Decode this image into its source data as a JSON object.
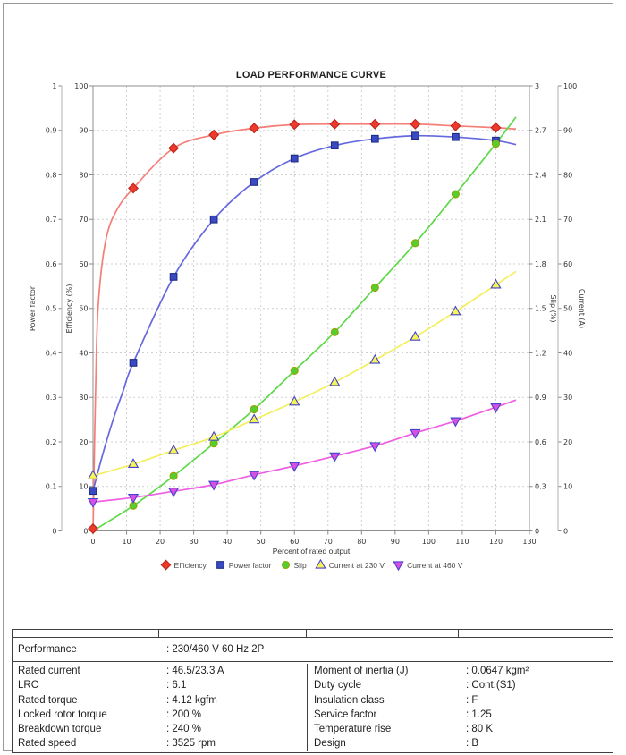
{
  "chart_data": {
    "type": "line",
    "title": "LOAD PERFORMANCE CURVE",
    "xlabel": "Percent of rated output",
    "grid": true,
    "legend_position": "bottom",
    "x_axis": {
      "range": [
        0,
        130
      ],
      "tick_step": 10,
      "ticks": [
        "0",
        "10",
        "20",
        "30",
        "40",
        "50",
        "60",
        "70",
        "80",
        "90",
        "100",
        "110",
        "120",
        "130"
      ]
    },
    "y_axes": {
      "power_factor": {
        "label": "Power factor",
        "range": [
          0,
          1
        ],
        "side": "outer-left",
        "ticks": [
          "1",
          "0.9",
          "0.8",
          "0.7",
          "0.6",
          "0.5",
          "0.4",
          "0.3",
          "0.2",
          "0.1",
          "0"
        ]
      },
      "efficiency": {
        "label": "Efficiency (%)",
        "range": [
          0,
          100
        ],
        "side": "left",
        "ticks": [
          "100",
          "90",
          "80",
          "70",
          "60",
          "50",
          "40",
          "30",
          "20",
          "10",
          "0"
        ]
      },
      "slip": {
        "label": "Slip (%)",
        "range": [
          0,
          3
        ],
        "side": "right",
        "ticks": [
          "3",
          "2.7",
          "2.4",
          "2.1",
          "1.8",
          "1.5",
          "1.2",
          "0.9",
          "0.6",
          "0.3",
          "0"
        ]
      },
      "current": {
        "label": "Current (A)",
        "range": [
          0,
          100
        ],
        "side": "outer-right",
        "ticks": [
          "100",
          "90",
          "80",
          "70",
          "60",
          "50",
          "40",
          "30",
          "20",
          "10",
          "0"
        ]
      }
    },
    "series": [
      {
        "name": "Efficiency",
        "axis": "efficiency",
        "marker": "diamond",
        "color": {
          "line": "#f57f78",
          "fill": "#ee3a2d",
          "edge": "#bb2418"
        },
        "x": [
          0,
          12,
          24,
          36,
          48,
          60,
          72,
          84,
          96,
          108,
          120
        ],
        "y": [
          0.5,
          77,
          86,
          89,
          90.5,
          91.3,
          91.4,
          91.4,
          91.4,
          91.0,
          90.6
        ],
        "curve_x": [
          0,
          1,
          2,
          4,
          7,
          12,
          24,
          36,
          48,
          60,
          72,
          84,
          96,
          108,
          120,
          126
        ],
        "curve_y": [
          0,
          40,
          55,
          66,
          72,
          77,
          86,
          89,
          90.5,
          91.3,
          91.4,
          91.4,
          91.4,
          91.0,
          90.6,
          90.3
        ]
      },
      {
        "name": "Power factor",
        "axis": "power_factor",
        "marker": "square",
        "color": {
          "line": "#6569dd",
          "fill": "#3a4ac2",
          "edge": "#1d2c86"
        },
        "x": [
          0,
          12,
          24,
          36,
          48,
          60,
          72,
          84,
          96,
          108,
          120
        ],
        "y": [
          0.09,
          0.378,
          0.571,
          0.7,
          0.784,
          0.837,
          0.866,
          0.881,
          0.888,
          0.885,
          0.877
        ],
        "curve_x": [
          0,
          3,
          6,
          9,
          12,
          24,
          36,
          48,
          60,
          72,
          84,
          96,
          108,
          120,
          126
        ],
        "curve_y": [
          0.09,
          0.175,
          0.25,
          0.315,
          0.378,
          0.571,
          0.7,
          0.784,
          0.837,
          0.866,
          0.881,
          0.888,
          0.885,
          0.877,
          0.868
        ]
      },
      {
        "name": "Slip",
        "axis": "slip",
        "marker": "circle",
        "color": {
          "line": "#5fd94a",
          "fill": "#55cf2e",
          "edge": "#97a100"
        },
        "x": [
          12,
          24,
          36,
          48,
          60,
          72,
          84,
          96,
          108,
          120
        ],
        "y": [
          0.17,
          0.37,
          0.59,
          0.82,
          1.08,
          1.34,
          1.64,
          1.94,
          2.27,
          2.61
        ],
        "curve_x": [
          0,
          12,
          24,
          36,
          48,
          60,
          72,
          84,
          96,
          108,
          120,
          126
        ],
        "curve_y": [
          0,
          0.17,
          0.37,
          0.59,
          0.82,
          1.08,
          1.34,
          1.64,
          1.94,
          2.27,
          2.61,
          2.79
        ]
      },
      {
        "name": "Current at 230 V",
        "axis": "current",
        "marker": "triangle-up",
        "color": {
          "line": "#f3ef5d",
          "fill": "#f7f455",
          "edge": "#4343cb"
        },
        "x": [
          0,
          12,
          24,
          36,
          48,
          60,
          72,
          84,
          96,
          108,
          120
        ],
        "y": [
          12.4,
          15.0,
          18.1,
          21.1,
          25.0,
          29.0,
          33.4,
          38.4,
          43.6,
          49.3,
          55.3
        ],
        "curve_x": [
          0,
          12,
          24,
          36,
          48,
          60,
          72,
          84,
          96,
          108,
          120,
          126
        ],
        "curve_y": [
          12.4,
          15.0,
          18.1,
          21.1,
          25.0,
          29.0,
          33.4,
          38.4,
          43.6,
          49.3,
          55.3,
          58.3
        ]
      },
      {
        "name": "Current at 460 V",
        "axis": "current",
        "marker": "triangle-down",
        "color": {
          "line": "#ef5fe4",
          "fill": "#d94fe4",
          "edge": "#4343cb"
        },
        "x": [
          0,
          12,
          24,
          36,
          48,
          60,
          72,
          84,
          96,
          108,
          120
        ],
        "y": [
          6.5,
          7.5,
          8.9,
          10.4,
          12.6,
          14.6,
          16.8,
          19.1,
          22.0,
          24.7,
          27.8
        ],
        "curve_x": [
          0,
          12,
          24,
          36,
          48,
          60,
          72,
          84,
          96,
          108,
          120,
          126
        ],
        "curve_y": [
          6.5,
          7.5,
          8.9,
          10.4,
          12.6,
          14.6,
          16.8,
          19.1,
          22.0,
          24.7,
          27.8,
          29.4
        ]
      }
    ]
  },
  "table": {
    "performance": {
      "label": "Performance",
      "value": ": 230/460 V 60 Hz 2P"
    },
    "rows": [
      {
        "l_label": "Rated current",
        "l_value": ": 46.5/23.3 A",
        "r_label": "Moment of inertia (J)",
        "r_value": ": 0.0647 kgm²"
      },
      {
        "l_label": "LRC",
        "l_value": ": 6.1",
        "r_label": "Duty cycle",
        "r_value": ": Cont.(S1)"
      },
      {
        "l_label": "Rated torque",
        "l_value": ": 4.12 kgfm",
        "r_label": "Insulation class",
        "r_value": ": F"
      },
      {
        "l_label": "Locked rotor torque",
        "l_value": ": 200 %",
        "r_label": "Service factor",
        "r_value": ": 1.25"
      },
      {
        "l_label": "Breakdown torque",
        "l_value": ": 240 %",
        "r_label": "Temperature rise",
        "r_value": ": 80 K"
      },
      {
        "l_label": "Rated speed",
        "l_value": ": 3525 rpm",
        "r_label": "Design",
        "r_value": ": B"
      }
    ]
  }
}
